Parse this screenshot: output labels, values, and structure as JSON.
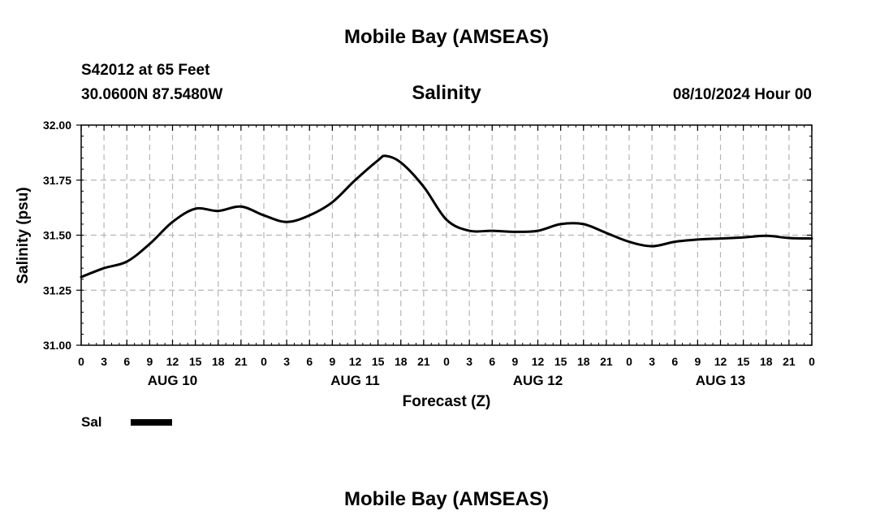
{
  "header": {
    "top_title": "Mobile Bay (AMSEAS)",
    "station": "S42012 at 65 Feet",
    "coords": "30.0600N  87.5480W",
    "chart_title": "Salinity",
    "forecast_time": "08/10/2024 Hour 00",
    "bottom_title": "Mobile Bay (AMSEAS)"
  },
  "legend": {
    "label": "Sal",
    "color": "#000000"
  },
  "chart_data": {
    "type": "line",
    "title": "Salinity",
    "xlabel": "Forecast (Z)",
    "ylabel": "Salinity (psu)",
    "ylim": [
      31.0,
      32.0
    ],
    "yticks": [
      "31.00",
      "31.25",
      "31.50",
      "31.75",
      "32.00"
    ],
    "xlim_hours": [
      0,
      96
    ],
    "xticks": [
      "0",
      "3",
      "6",
      "9",
      "12",
      "15",
      "18",
      "21",
      "0",
      "3",
      "6",
      "9",
      "12",
      "15",
      "18",
      "21",
      "0",
      "3",
      "6",
      "9",
      "12",
      "15",
      "18",
      "21",
      "0",
      "3",
      "6",
      "9",
      "12",
      "15",
      "18",
      "21",
      "0"
    ],
    "day_labels": [
      {
        "label": "AUG 10",
        "hour": 12
      },
      {
        "label": "AUG 11",
        "hour": 36
      },
      {
        "label": "AUG 12",
        "hour": 60
      },
      {
        "label": "AUG 13",
        "hour": 84
      }
    ],
    "grid": true,
    "series": [
      {
        "name": "Sal",
        "color": "#000000",
        "x": [
          0,
          3,
          6,
          9,
          12,
          15,
          18,
          21,
          24,
          27,
          30,
          33,
          36,
          39,
          40,
          42,
          45,
          48,
          51,
          54,
          57,
          60,
          63,
          66,
          69,
          72,
          75,
          78,
          81,
          84,
          87,
          90,
          93,
          96
        ],
        "y": [
          31.31,
          31.35,
          31.38,
          31.46,
          31.56,
          31.62,
          31.61,
          31.63,
          31.59,
          31.56,
          31.59,
          31.65,
          31.75,
          31.84,
          31.86,
          31.83,
          31.72,
          31.57,
          31.52,
          31.52,
          31.515,
          31.52,
          31.55,
          31.55,
          31.51,
          31.47,
          31.45,
          31.47,
          31.48,
          31.485,
          31.49,
          31.497,
          31.487,
          31.485
        ]
      }
    ]
  }
}
